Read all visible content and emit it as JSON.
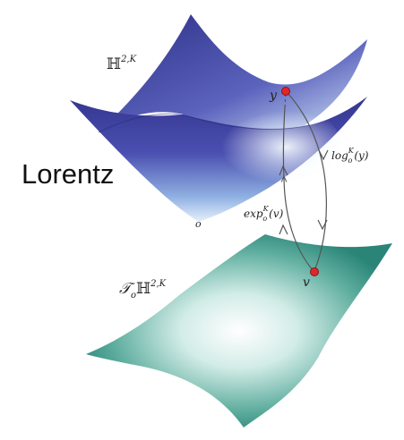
{
  "heading": "Lorentz",
  "manifold": {
    "symbol": "ℍ",
    "superscript": "2,K",
    "origin_label": "o",
    "point_label": "y"
  },
  "tangent_space": {
    "symbol_T": "𝒯",
    "subscript": "o",
    "symbol": "ℍ",
    "superscript": "2,K",
    "point_label": "v"
  },
  "maps": {
    "log": {
      "name": "log",
      "subscript": "o",
      "superscript": "K",
      "argument": "(y)"
    },
    "exp": {
      "name": "exp",
      "subscript": "o",
      "superscript": "K",
      "argument": "(v)"
    }
  },
  "colors": {
    "hyperboloid_dark": "#3a3c9a",
    "hyperboloid_light": "#dbe9f7",
    "tangent_dark": "#2d8a7e",
    "tangent_light": "#ffffff",
    "point": "#e0262a",
    "arrow": "#555555"
  }
}
